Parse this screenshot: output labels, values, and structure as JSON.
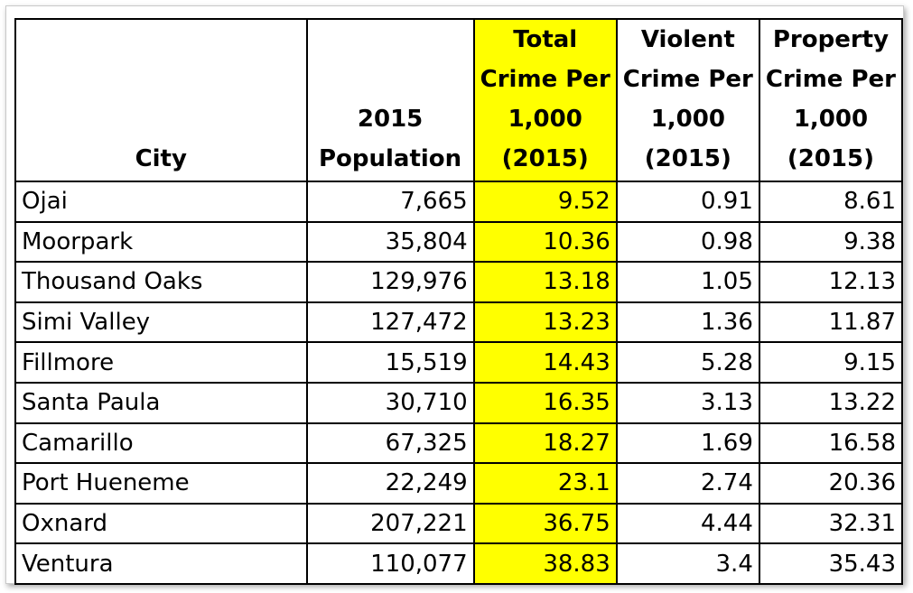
{
  "table": {
    "headers": [
      {
        "key": "city",
        "lines": [
          "City"
        ]
      },
      {
        "key": "population",
        "lines": [
          "2015",
          "Population"
        ]
      },
      {
        "key": "total",
        "lines": [
          "Total",
          "Crime Per",
          "1,000",
          "(2015)"
        ]
      },
      {
        "key": "violent",
        "lines": [
          "Violent",
          "Crime Per",
          "1,000",
          "(2015)"
        ]
      },
      {
        "key": "property",
        "lines": [
          "Property",
          "Crime Per",
          "1,000",
          "(2015)"
        ]
      }
    ],
    "highlight_color": "#ffff00",
    "rows": [
      {
        "city": "Ojai",
        "population": "7,665",
        "total": "9.52",
        "violent": "0.91",
        "property": "8.61"
      },
      {
        "city": "Moorpark",
        "population": "35,804",
        "total": "10.36",
        "violent": "0.98",
        "property": "9.38"
      },
      {
        "city": "Thousand Oaks",
        "population": "129,976",
        "total": "13.18",
        "violent": "1.05",
        "property": "12.13"
      },
      {
        "city": "Simi Valley",
        "population": "127,472",
        "total": "13.23",
        "violent": "1.36",
        "property": "11.87"
      },
      {
        "city": "Fillmore",
        "population": "15,519",
        "total": "14.43",
        "violent": "5.28",
        "property": "9.15"
      },
      {
        "city": "Santa Paula",
        "population": "30,710",
        "total": "16.35",
        "violent": "3.13",
        "property": "13.22"
      },
      {
        "city": "Camarillo",
        "population": "67,325",
        "total": "18.27",
        "violent": "1.69",
        "property": "16.58"
      },
      {
        "city": "Port Hueneme",
        "population": "22,249",
        "total": "23.1",
        "violent": "2.74",
        "property": "20.36"
      },
      {
        "city": "Oxnard",
        "population": "207,221",
        "total": "36.75",
        "violent": "4.44",
        "property": "32.31"
      },
      {
        "city": "Ventura",
        "population": "110,077",
        "total": "38.83",
        "violent": "3.4",
        "property": "35.43"
      }
    ]
  }
}
